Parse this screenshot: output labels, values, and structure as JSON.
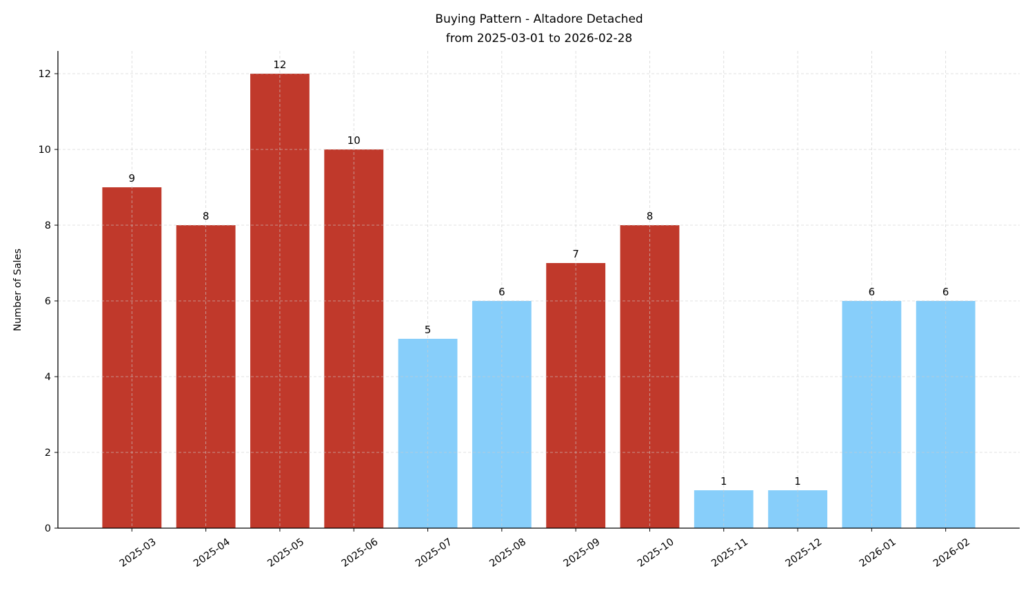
{
  "chart_data": {
    "type": "bar",
    "title": "Buying Pattern - Altadore Detached",
    "subtitle": "from 2025-03-01 to 2026-02-28",
    "xlabel": "",
    "ylabel": "Number of Sales",
    "categories": [
      "2025-03",
      "2025-04",
      "2025-05",
      "2025-06",
      "2025-07",
      "2025-08",
      "2025-09",
      "2025-10",
      "2025-11",
      "2025-12",
      "2026-01",
      "2026-02"
    ],
    "values": [
      9,
      8,
      12,
      10,
      5,
      6,
      7,
      8,
      1,
      1,
      6,
      6
    ],
    "highlight": [
      true,
      true,
      true,
      true,
      false,
      false,
      true,
      true,
      false,
      false,
      false,
      false
    ],
    "colors": {
      "high": "#c0392b",
      "low": "#87cefa"
    },
    "ylim": [
      0,
      12.6
    ],
    "yticks": [
      0,
      2,
      4,
      6,
      8,
      10,
      12
    ],
    "grid": true,
    "data_labels": true
  }
}
